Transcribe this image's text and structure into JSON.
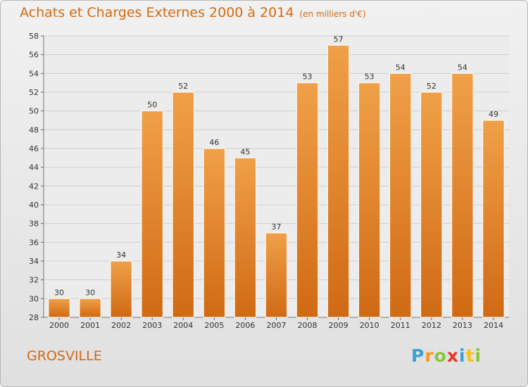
{
  "chart_data": {
    "type": "bar",
    "title": "Achats et Charges Externes 2000 à 2014",
    "subtitle": "(en milliers d'€)",
    "categories": [
      "2000",
      "2001",
      "2002",
      "2003",
      "2004",
      "2005",
      "2006",
      "2007",
      "2008",
      "2009",
      "2010",
      "2011",
      "2012",
      "2013",
      "2014"
    ],
    "values": [
      30,
      30,
      34,
      50,
      52,
      46,
      45,
      37,
      53,
      57,
      53,
      54,
      52,
      54,
      49
    ],
    "ylim": [
      28,
      58
    ],
    "yticks": [
      28,
      30,
      32,
      34,
      36,
      38,
      40,
      42,
      44,
      46,
      48,
      50,
      52,
      54,
      56,
      58
    ],
    "grid": true,
    "bar_color": "#f0a048",
    "bar_color_dark": "#d06a14"
  },
  "footer": {
    "town": "GROSVILLE",
    "logo_letters": [
      {
        "ch": "P",
        "color": "#3aa0d8"
      },
      {
        "ch": "r",
        "color": "#f29a1e"
      },
      {
        "ch": "o",
        "color": "#8cc43c"
      },
      {
        "ch": "x",
        "color": "#e8342a"
      },
      {
        "ch": "i",
        "color": "#3aa0d8"
      },
      {
        "ch": "t",
        "color": "#f2c21e"
      },
      {
        "ch": "i",
        "color": "#8cc43c"
      }
    ]
  }
}
